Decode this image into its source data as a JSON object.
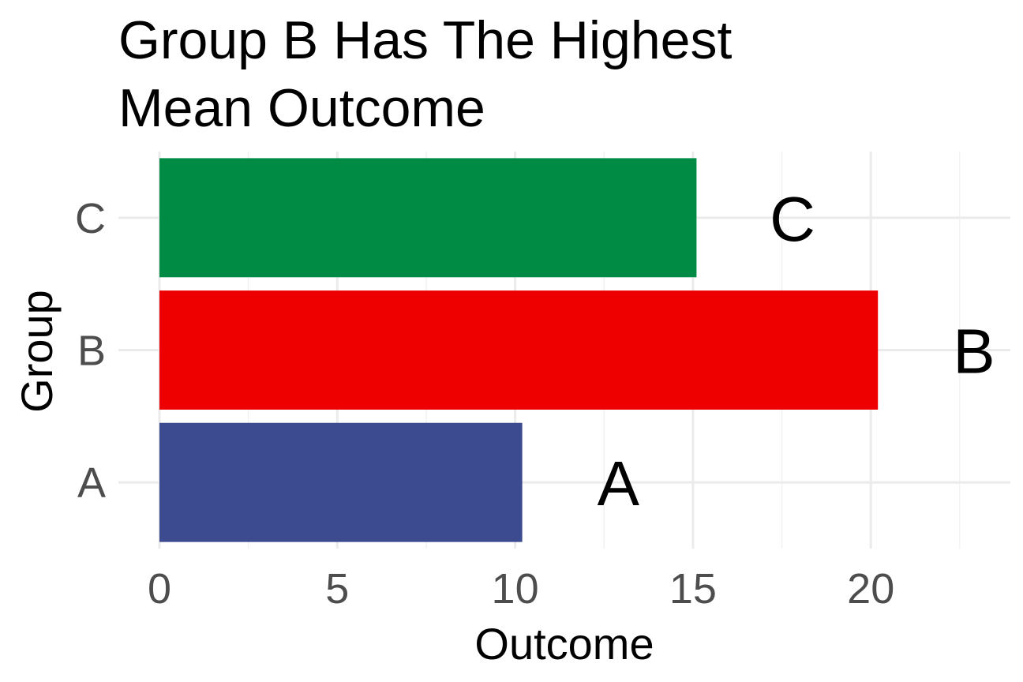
{
  "chart_data": {
    "type": "bar",
    "orientation": "horizontal",
    "title": "Group B Has The Highest\nMean Outcome",
    "title_lines": [
      "Group B Has The Highest",
      "Mean Outcome"
    ],
    "xlabel": "Outcome",
    "ylabel": "Group",
    "categories": [
      "A",
      "B",
      "C"
    ],
    "values": [
      10.2,
      20.2,
      15.1
    ],
    "colors": [
      "#3C4A8F",
      "#EE0000",
      "#008B45"
    ],
    "data_labels": [
      "A",
      "B",
      "C"
    ],
    "xlim": [
      0,
      24
    ],
    "xticks": [
      0,
      5,
      10,
      15,
      20
    ],
    "grid": true,
    "legend": "none"
  }
}
